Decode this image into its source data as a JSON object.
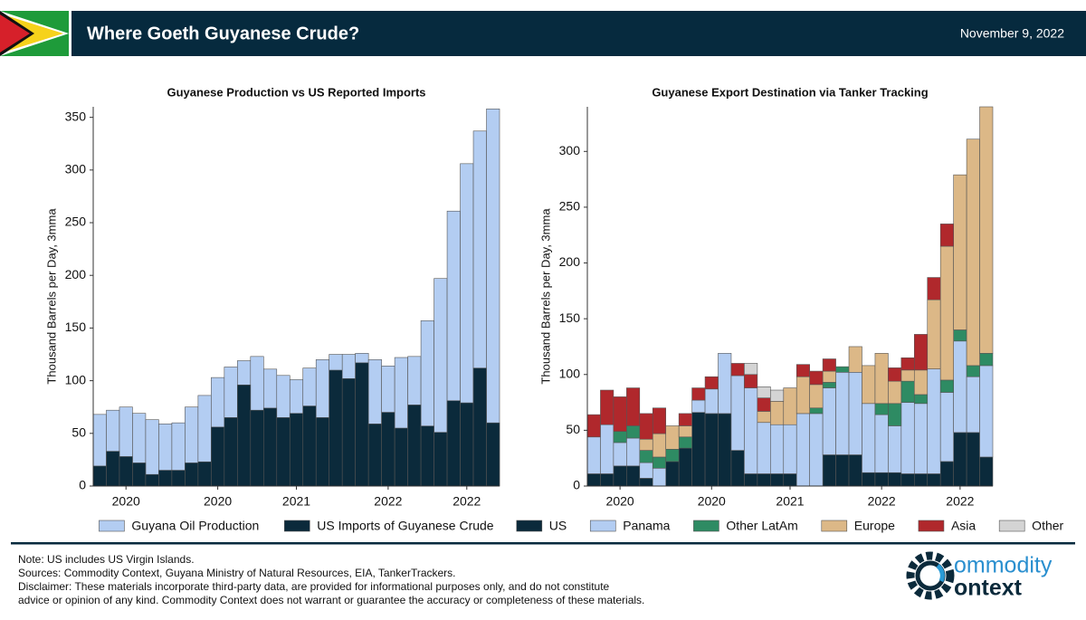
{
  "header": {
    "title": "Where Goeth Guyanese Crude?",
    "date": "November 9, 2022"
  },
  "chart_data": [
    {
      "type": "bar",
      "stacked": false,
      "title": "Guyanese Production vs US Reported Imports",
      "ylabel": "Thousand Barrels per Day, 3mma",
      "categories": [
        null,
        null,
        "2020",
        null,
        null,
        null,
        null,
        null,
        null,
        "2020",
        null,
        null,
        null,
        null,
        null,
        "2021",
        null,
        null,
        null,
        null,
        null,
        null,
        "2022",
        null,
        null,
        null,
        null,
        null,
        "2022",
        null,
        null
      ],
      "series": [
        {
          "name": "Guyana Oil Production",
          "color": "#b3cdf2",
          "values": [
            68,
            72,
            75,
            69,
            63,
            59,
            60,
            75,
            86,
            103,
            113,
            119,
            123,
            111,
            105,
            101,
            112,
            120,
            125,
            125,
            126,
            120,
            114,
            122,
            123,
            157,
            197,
            261,
            306,
            337,
            358
          ]
        },
        {
          "name": "US Imports of Guyanese Crude",
          "color": "#0b2a3b",
          "values": [
            19,
            33,
            28,
            22,
            11,
            15,
            15,
            22,
            23,
            56,
            65,
            96,
            72,
            74,
            65,
            69,
            76,
            65,
            110,
            102,
            117,
            59,
            70,
            55,
            77,
            57,
            51,
            81,
            79,
            112,
            60
          ]
        }
      ],
      "ylim": [
        0,
        360
      ],
      "yticks": [
        0,
        50,
        100,
        150,
        200,
        250,
        300,
        350
      ],
      "grid": false
    },
    {
      "type": "bar",
      "stacked": true,
      "title": "Guyanese Export Destination via Tanker Tracking",
      "ylabel": "Thousand Barrels per Day, 3mma",
      "categories": [
        null,
        null,
        "2020",
        null,
        null,
        null,
        null,
        null,
        null,
        "2020",
        null,
        null,
        null,
        null,
        null,
        "2021",
        null,
        null,
        null,
        null,
        null,
        null,
        "2022",
        null,
        null,
        null,
        null,
        null,
        "2022",
        null,
        null
      ],
      "series": [
        {
          "name": "US",
          "color": "#0b2a3b",
          "values": [
            11,
            11,
            18,
            18,
            7,
            0,
            22,
            34,
            66,
            65,
            65,
            32,
            11,
            11,
            11,
            11,
            0,
            0,
            28,
            28,
            28,
            12,
            12,
            12,
            11,
            11,
            11,
            22,
            48,
            48,
            26
          ]
        },
        {
          "name": "Panama",
          "color": "#b3cdf2",
          "values": [
            33,
            44,
            21,
            25,
            14,
            16,
            0,
            0,
            11,
            22,
            54,
            67,
            77,
            46,
            44,
            44,
            65,
            65,
            60,
            74,
            74,
            62,
            52,
            42,
            64,
            63,
            94,
            62,
            82,
            50,
            82
          ]
        },
        {
          "name": "Other LatAm",
          "color": "#2e8b63",
          "values": [
            0,
            0,
            10,
            11,
            11,
            10,
            11,
            10,
            0,
            0,
            0,
            0,
            0,
            0,
            0,
            0,
            0,
            5,
            5,
            5,
            0,
            0,
            10,
            20,
            19,
            8,
            0,
            11,
            10,
            10,
            11
          ]
        },
        {
          "name": "Europe",
          "color": "#dcb887",
          "values": [
            0,
            0,
            0,
            0,
            10,
            21,
            21,
            10,
            0,
            0,
            0,
            0,
            0,
            10,
            21,
            33,
            33,
            21,
            10,
            0,
            23,
            34,
            45,
            20,
            10,
            22,
            62,
            120,
            139,
            203,
            221
          ]
        },
        {
          "name": "Asia",
          "color": "#b0282c",
          "values": [
            20,
            31,
            31,
            34,
            23,
            23,
            0,
            11,
            11,
            11,
            0,
            11,
            12,
            12,
            0,
            0,
            11,
            12,
            11,
            0,
            0,
            0,
            0,
            12,
            11,
            32,
            20,
            20,
            0,
            0,
            0
          ]
        },
        {
          "name": "Other",
          "color": "#d4d4d4",
          "values": [
            0,
            0,
            0,
            0,
            0,
            0,
            0,
            0,
            0,
            0,
            0,
            0,
            10,
            10,
            10,
            0,
            0,
            0,
            0,
            0,
            0,
            0,
            0,
            0,
            0,
            0,
            0,
            0,
            0,
            0,
            0
          ]
        }
      ],
      "ylim": [
        0,
        340
      ],
      "yticks": [
        0,
        50,
        100,
        150,
        200,
        250,
        300
      ],
      "grid": false
    }
  ],
  "notes": [
    "Note: US includes US Virgin Islands.",
    "Sources: Commodity Context, Guyana Ministry of Natural Resources, EIA, TankerTrackers.",
    "Disclaimer: These materials incorporate third-party data, are provided for informational purposes only, and do not constitute",
    "advice or opinion of any kind. Commodity Context does not warrant or guarantee the accuracy or completeness of these materials."
  ],
  "logo": {
    "line1": "ommodity",
    "line2": "ontext"
  }
}
